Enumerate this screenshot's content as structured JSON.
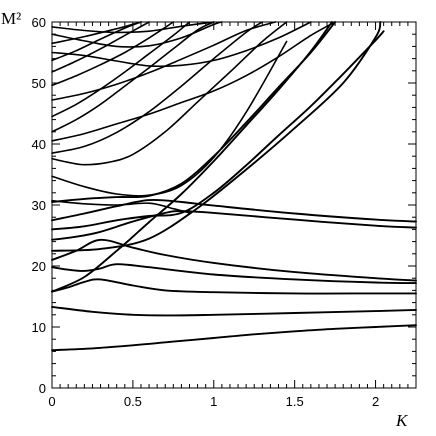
{
  "chart_data": {
    "type": "line",
    "title": "",
    "xlabel": "Κ",
    "ylabel": "M²",
    "xlim": [
      0,
      2.25
    ],
    "ylim": [
      0,
      60
    ],
    "x_ticks": [
      "0",
      "0.5",
      "1",
      "1.5",
      "2"
    ],
    "y_ticks": [
      "0",
      "10",
      "20",
      "30",
      "40",
      "50",
      "60"
    ],
    "grid": false,
    "legend": "none",
    "line_color": "#000000",
    "series": [
      {
        "x": [
          0,
          0.25,
          0.5,
          0.75,
          1.0,
          1.25,
          1.5,
          1.75,
          2.0,
          2.25
        ],
        "y": [
          6.2,
          6.5,
          7.0,
          7.6,
          8.2,
          8.8,
          9.3,
          9.7,
          10.0,
          10.3
        ]
      },
      {
        "x": [
          0,
          0.25,
          0.5,
          0.75,
          1.0,
          1.5,
          2.0,
          2.25
        ],
        "y": [
          13.3,
          12.5,
          12.0,
          11.9,
          12.0,
          12.3,
          12.6,
          12.8
        ]
      },
      {
        "x": [
          0,
          0.1,
          0.2,
          0.3,
          0.5,
          0.7,
          1.0,
          1.5,
          2.0,
          2.25
        ],
        "y": [
          15.8,
          16.5,
          17.4,
          17.8,
          16.8,
          16.0,
          15.7,
          15.5,
          15.5,
          15.5
        ]
      },
      {
        "x": [
          0,
          0.1,
          0.2,
          0.3,
          0.4,
          0.6,
          1.0,
          1.5,
          2.0,
          2.25
        ],
        "y": [
          19.8,
          19.4,
          19.2,
          19.6,
          20.3,
          19.8,
          18.6,
          17.8,
          17.3,
          17.2
        ]
      },
      {
        "x": [
          0,
          0.15,
          0.3,
          0.5,
          0.7,
          1.0,
          1.5,
          2.0,
          2.25
        ],
        "y": [
          21.0,
          22.5,
          24.3,
          23.0,
          21.8,
          20.5,
          19.0,
          18.0,
          17.6
        ]
      },
      {
        "x": [
          0,
          0.15,
          0.3,
          0.5,
          0.7,
          0.8,
          1.0,
          1.5,
          2.0,
          2.25
        ],
        "y": [
          24.3,
          24.8,
          25.6,
          27.3,
          28.7,
          29.0,
          28.7,
          27.6,
          26.6,
          26.3
        ]
      },
      {
        "x": [
          0,
          0.2,
          0.4,
          0.6,
          0.8,
          1.0,
          1.5,
          2.0,
          2.25
        ],
        "y": [
          27.5,
          28.6,
          29.8,
          30.8,
          30.5,
          29.9,
          28.6,
          27.6,
          27.3
        ]
      },
      {
        "x": [
          0,
          0.2,
          0.4,
          0.6,
          0.8,
          1.0,
          1.2,
          1.4,
          1.6,
          1.75
        ],
        "y": [
          30.5,
          31.0,
          31.3,
          31.5,
          33.5,
          38.0,
          43.5,
          49.3,
          55.0,
          60.0
        ]
      },
      {
        "x": [
          0,
          0.2,
          0.4,
          0.5,
          0.6,
          0.8,
          1.0,
          1.2,
          1.4,
          1.6,
          1.73
        ],
        "y": [
          15.8,
          18.2,
          22.5,
          24.8,
          27.2,
          31.8,
          37.2,
          43.0,
          48.9,
          55.2,
          60.0
        ]
      },
      {
        "x": [
          0,
          0.2,
          0.4,
          0.6,
          0.8,
          1.0,
          1.2,
          1.4,
          1.6,
          1.8,
          2.0,
          2.05
        ],
        "y": [
          26.0,
          26.5,
          27.5,
          28.2,
          28.7,
          32.0,
          36.5,
          41.4,
          46.2,
          51.5,
          57.0,
          58.5
        ]
      },
      {
        "x": [
          0,
          0.3,
          0.6,
          0.9,
          1.2,
          1.5,
          1.8,
          2.0,
          2.03
        ],
        "y": [
          22.5,
          22.8,
          24.5,
          29.5,
          35.8,
          42.6,
          50.0,
          57.5,
          60.0
        ]
      },
      {
        "x": [
          0,
          0.2,
          0.4,
          0.6,
          0.75,
          0.85
        ],
        "y": [
          30.7,
          30.2,
          30.0,
          30.3,
          29.4,
          28.7
        ]
      },
      {
        "x": [
          0,
          0.2,
          0.4,
          0.6,
          0.8,
          1.0,
          1.2,
          1.45
        ],
        "y": [
          34.7,
          33.0,
          31.8,
          31.6,
          33.2,
          37.8,
          45.2,
          56.8
        ]
      },
      {
        "x": [
          0,
          0.1,
          0.2,
          0.35,
          0.5,
          0.7,
          0.9,
          1.1,
          1.3,
          1.45
        ],
        "y": [
          37.6,
          37.0,
          36.6,
          37.0,
          38.3,
          42.0,
          46.9,
          51.8,
          56.8,
          60.0
        ]
      },
      {
        "x": [
          0,
          0.2,
          0.4,
          0.6,
          0.8,
          1.0,
          1.2,
          1.3
        ],
        "y": [
          38.5,
          39.6,
          41.9,
          45.3,
          49.5,
          54.0,
          58.3,
          60.0
        ]
      },
      {
        "x": [
          0,
          0.2,
          0.4,
          0.6,
          0.8,
          1.0,
          1.2,
          1.4,
          1.6,
          1.75
        ],
        "y": [
          40.5,
          41.7,
          43.3,
          44.9,
          46.8,
          48.7,
          51.2,
          54.3,
          57.8,
          60.0
        ]
      },
      {
        "x": [
          0,
          0.15,
          0.3,
          0.45,
          0.6,
          0.75,
          0.9,
          1.0
        ],
        "y": [
          42.0,
          44.0,
          46.5,
          49.5,
          52.5,
          55.6,
          58.7,
          60.0
        ]
      },
      {
        "x": [
          0,
          0.15,
          0.3,
          0.45,
          0.6,
          0.75,
          0.85
        ],
        "y": [
          44.5,
          46.5,
          49.0,
          51.8,
          54.8,
          57.8,
          60.0
        ]
      },
      {
        "x": [
          0,
          0.2,
          0.4,
          0.6,
          0.8,
          1.0,
          1.2,
          1.38
        ],
        "y": [
          47.2,
          48.3,
          49.8,
          51.7,
          53.9,
          56.2,
          58.6,
          60.0
        ]
      },
      {
        "x": [
          0,
          0.15,
          0.3,
          0.45,
          0.6,
          0.75
        ],
        "y": [
          49.6,
          51.2,
          53.0,
          55.0,
          57.4,
          60.0
        ]
      },
      {
        "x": [
          0,
          0.15,
          0.3,
          0.45,
          0.6
        ],
        "y": [
          51.8,
          53.6,
          55.6,
          57.8,
          60.0
        ]
      },
      {
        "x": [
          0,
          0.15,
          0.3,
          0.45,
          0.55
        ],
        "y": [
          53.7,
          55.3,
          57.2,
          59.0,
          60.0
        ]
      },
      {
        "x": [
          0,
          0.2,
          0.4,
          0.6,
          0.8,
          1.0,
          1.2,
          1.4,
          1.6
        ],
        "y": [
          55.0,
          54.5,
          53.6,
          52.8,
          52.9,
          53.7,
          55.3,
          57.4,
          60.0
        ]
      },
      {
        "x": [
          0,
          0.2,
          0.4,
          0.6,
          0.8,
          1.0,
          1.05
        ],
        "y": [
          58.0,
          56.9,
          56.0,
          56.1,
          57.4,
          59.6,
          60.0
        ]
      },
      {
        "x": [
          0,
          0.2,
          0.4,
          0.6,
          0.8,
          1.0
        ],
        "y": [
          59.2,
          58.6,
          58.3,
          58.5,
          59.3,
          60.0
        ]
      },
      {
        "x": [
          0,
          0.2,
          0.4,
          0.55
        ],
        "y": [
          56.5,
          57.6,
          58.9,
          60.0
        ]
      }
    ]
  }
}
